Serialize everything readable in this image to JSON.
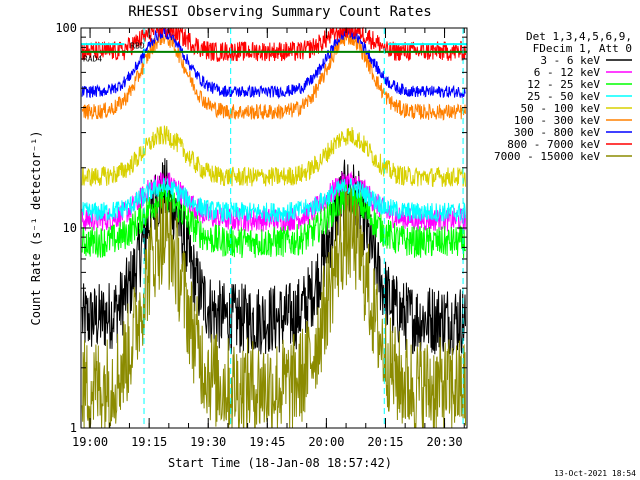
{
  "chart_data": {
    "type": "line",
    "title": "RHESSI Observing Summary Count Rates",
    "xlabel": "Start Time (18-Jan-08 18:57:42)",
    "ylabel": "Count Rate (s⁻¹ detector⁻¹)",
    "y_scale": "log",
    "ylim": [
      1,
      100
    ],
    "xlim_minutes_after_start": [
      0,
      98
    ],
    "y_tick_labels": [
      "1",
      "10",
      "100"
    ],
    "x_tick_labels": [
      "19:00",
      "19:15",
      "19:30",
      "19:45",
      "20:00",
      "20:15",
      "20:30"
    ],
    "x_tick_minutes": [
      2.3,
      17.3,
      32.3,
      47.3,
      62.3,
      77.3,
      92.3
    ],
    "legend_header": [
      "Det 1,3,4,5,6,9,",
      "FDecim 1, Att 0"
    ],
    "legend_position": "right",
    "flags": [
      "RBD",
      "RAD4"
    ],
    "timestamp": "13-Oct-2021 18:54",
    "series": [
      {
        "name": "3 - 6 keV",
        "color": "#000000",
        "baseline": 3.5,
        "peak": 15,
        "noise": 0.18
      },
      {
        "name": "6 - 12 keV",
        "color": "#ff00ff",
        "baseline": 11,
        "peak": 17,
        "noise": 0.06
      },
      {
        "name": "12 - 25 keV",
        "color": "#00ff00",
        "baseline": 8.5,
        "peak": 14,
        "noise": 0.08
      },
      {
        "name": "25 - 50 keV",
        "color": "#00ffff",
        "baseline": 12,
        "peak": 16,
        "noise": 0.05
      },
      {
        "name": "50 - 100 keV",
        "color": "#d8d000",
        "baseline": 18,
        "peak": 29,
        "noise": 0.05
      },
      {
        "name": "100 - 300 keV",
        "color": "#ff8000",
        "baseline": 38,
        "peak": 90,
        "noise": 0.04
      },
      {
        "name": "300 - 800 keV",
        "color": "#0000ff",
        "baseline": 48,
        "peak": 95,
        "noise": 0.03
      },
      {
        "name": "800 - 7000 keV",
        "color": "#ff0000",
        "baseline": 75,
        "peak": 100,
        "noise": 0.05
      },
      {
        "name": "7000 - 15000 keV",
        "color": "#8b8b00",
        "baseline": 1.6,
        "peak": 9,
        "noise": 0.25
      }
    ]
  }
}
